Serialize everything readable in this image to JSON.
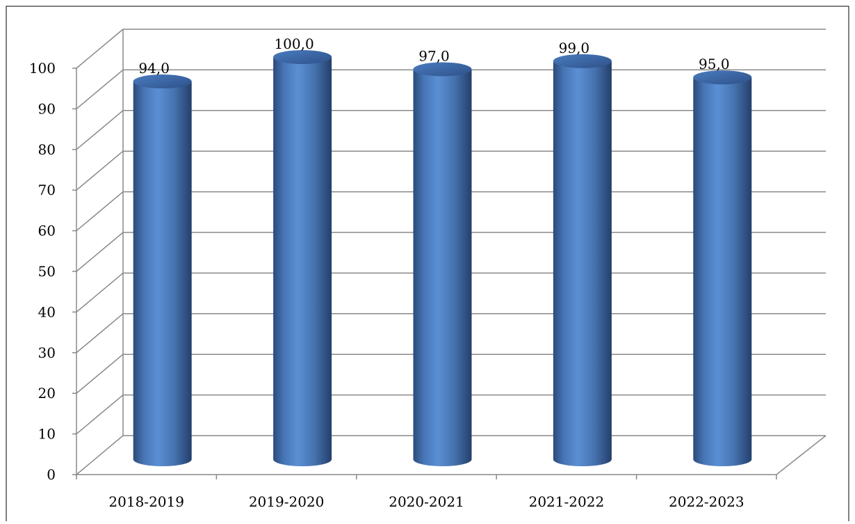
{
  "chart_data": {
    "type": "bar",
    "style": "3d-cylinder",
    "title": "",
    "xlabel": "",
    "ylabel": "",
    "categories": [
      "2018-2019",
      "2019-2020",
      "2020-2021",
      "2021-2022",
      "2022-2023"
    ],
    "series": [
      {
        "values": [
          94.0,
          100.0,
          97.0,
          99.0,
          95.0
        ],
        "color": "#4f81bd"
      }
    ],
    "data_labels": [
      "94,0",
      "100,0",
      "97,0",
      "99,0",
      "95,0"
    ],
    "y_ticks": [
      "0",
      "10",
      "20",
      "30",
      "40",
      "50",
      "60",
      "70",
      "80",
      "90",
      "100"
    ],
    "ylim": [
      0,
      100
    ],
    "grid": true,
    "legend": "none"
  }
}
